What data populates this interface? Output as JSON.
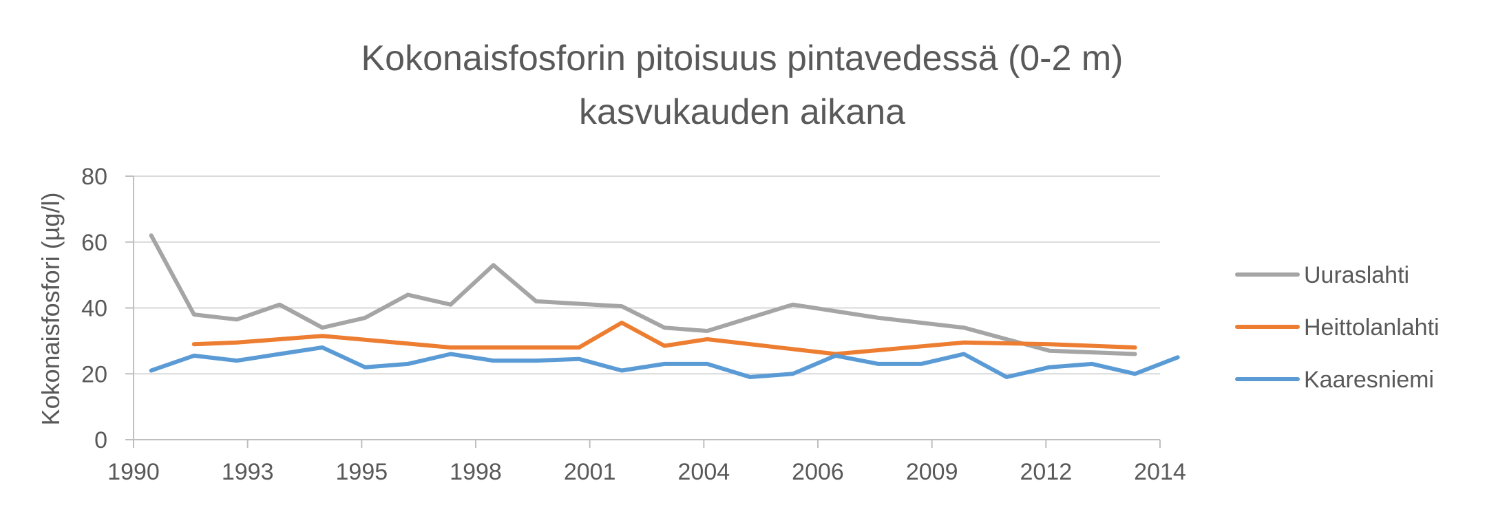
{
  "chart_data": {
    "type": "line",
    "title_lines": [
      "Kokonaisfosforin pitoisuus pintavedessä (0-2 m)",
      "kasvukauden aikana"
    ],
    "xlabel": "",
    "ylabel": "Kokonaisfosfori (µg/l)",
    "x_ticks": [
      "1990",
      "1993",
      "1995",
      "1998",
      "2001",
      "2004",
      "2006",
      "2009",
      "2012",
      "2014"
    ],
    "y_ticks": [
      "0",
      "20",
      "40",
      "60",
      "80"
    ],
    "ylim": [
      0,
      80
    ],
    "grid": true,
    "legend_position": "right",
    "series": [
      {
        "name": "Uuraslahti",
        "color": "#a5a5a5",
        "points": [
          [
            "1990-06-01",
            62
          ],
          [
            "1991-06-01",
            38
          ],
          [
            "1992-06-01",
            36.5
          ],
          [
            "1993-06-01",
            41
          ],
          [
            "1994-06-01",
            34
          ],
          [
            "1995-06-01",
            37
          ],
          [
            "1996-06-01",
            44
          ],
          [
            "1997-06-01",
            41
          ],
          [
            "1998-06-01",
            53
          ],
          [
            "1999-06-01",
            42
          ],
          [
            "2001-06-01",
            40.5
          ],
          [
            "2002-06-01",
            34
          ],
          [
            "2003-06-01",
            33
          ],
          [
            "2005-06-01",
            41
          ],
          [
            "2007-06-01",
            37
          ],
          [
            "2009-06-01",
            34
          ],
          [
            "2010-06-01",
            30.5
          ],
          [
            "2011-06-01",
            27
          ],
          [
            "2013-06-01",
            26
          ]
        ]
      },
      {
        "name": "Heittolanlahti",
        "color": "#ed7d31",
        "points": [
          [
            "1991-06-01",
            29
          ],
          [
            "1992-06-01",
            29.5
          ],
          [
            "1994-06-01",
            31.5
          ],
          [
            "1997-06-01",
            28
          ],
          [
            "2000-06-01",
            28
          ],
          [
            "2001-06-01",
            35.5
          ],
          [
            "2002-06-01",
            28.5
          ],
          [
            "2003-06-01",
            30.5
          ],
          [
            "2006-06-01",
            26
          ],
          [
            "2009-06-01",
            29.5
          ],
          [
            "2011-06-01",
            29
          ],
          [
            "2013-06-01",
            28
          ]
        ]
      },
      {
        "name": "Kaaresniemi",
        "color": "#5b9bd5",
        "points": [
          [
            "1990-06-01",
            21
          ],
          [
            "1991-06-01",
            25.5
          ],
          [
            "1992-06-01",
            24
          ],
          [
            "1993-06-01",
            26
          ],
          [
            "1994-06-01",
            28
          ],
          [
            "1995-06-01",
            22
          ],
          [
            "1996-06-01",
            23
          ],
          [
            "1997-06-01",
            26
          ],
          [
            "1998-06-01",
            24
          ],
          [
            "1999-06-01",
            24
          ],
          [
            "2000-06-01",
            24.5
          ],
          [
            "2001-06-01",
            21
          ],
          [
            "2002-06-01",
            23
          ],
          [
            "2003-06-01",
            23
          ],
          [
            "2004-06-01",
            19
          ],
          [
            "2005-06-01",
            20
          ],
          [
            "2006-06-01",
            25.5
          ],
          [
            "2007-06-01",
            23
          ],
          [
            "2008-06-01",
            23
          ],
          [
            "2009-06-01",
            26
          ],
          [
            "2010-06-01",
            19
          ],
          [
            "2011-06-01",
            22
          ],
          [
            "2012-06-01",
            23
          ],
          [
            "2013-06-01",
            20
          ],
          [
            "2014-06-01",
            25
          ]
        ]
      }
    ]
  }
}
